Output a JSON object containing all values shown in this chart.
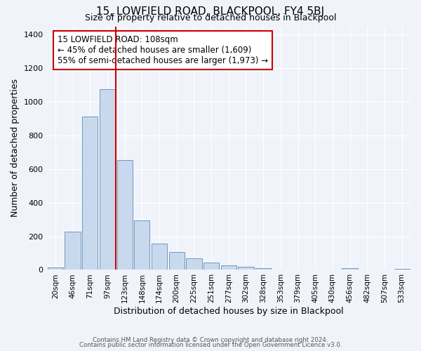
{
  "title": "15, LOWFIELD ROAD, BLACKPOOL, FY4 5BJ",
  "subtitle": "Size of property relative to detached houses in Blackpool",
  "xlabel": "Distribution of detached houses by size in Blackpool",
  "ylabel": "Number of detached properties",
  "bar_labels": [
    "20sqm",
    "46sqm",
    "71sqm",
    "97sqm",
    "123sqm",
    "148sqm",
    "174sqm",
    "200sqm",
    "225sqm",
    "251sqm",
    "277sqm",
    "302sqm",
    "328sqm",
    "353sqm",
    "379sqm",
    "405sqm",
    "430sqm",
    "456sqm",
    "482sqm",
    "507sqm",
    "533sqm"
  ],
  "bar_values": [
    15,
    228,
    915,
    1075,
    655,
    293,
    157,
    108,
    70,
    42,
    27,
    20,
    12,
    0,
    0,
    0,
    0,
    10,
    0,
    0,
    5
  ],
  "bar_color": "#c9d9ed",
  "bar_edge_color": "#7096be",
  "background_color": "#f0f4fa",
  "grid_color": "#ffffff",
  "vline_color": "#cc0000",
  "annotation_text": "15 LOWFIELD ROAD: 108sqm\n← 45% of detached houses are smaller (1,609)\n55% of semi-detached houses are larger (1,973) →",
  "annotation_box_color": "#ffffff",
  "annotation_box_edge": "#cc0000",
  "ylim": [
    0,
    1450
  ],
  "yticks": [
    0,
    200,
    400,
    600,
    800,
    1000,
    1200,
    1400
  ],
  "footer1": "Contains HM Land Registry data © Crown copyright and database right 2024.",
  "footer2": "Contains public sector information licensed under the Open Government Licence v3.0."
}
